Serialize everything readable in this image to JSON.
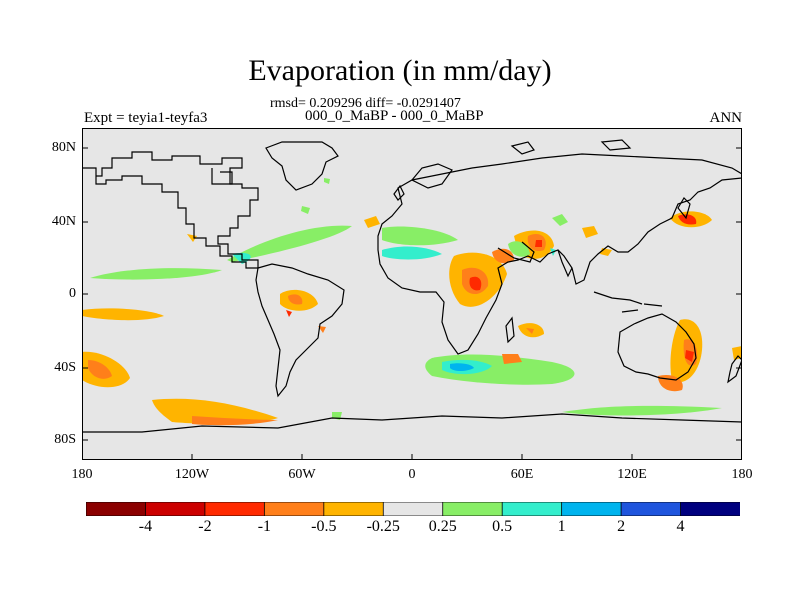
{
  "title": "Evaporation (in mm/day)",
  "stats": "rmsd= 0.209296 diff= -0.0291407",
  "period": "000_0_MaBP - 000_0_MaBP",
  "expt": "Expt = teyia1-teyfa3",
  "season": "ANN",
  "y_ticks": [
    "80N",
    "40N",
    "0",
    "40S",
    "80S"
  ],
  "x_ticks": [
    "180",
    "120W",
    "60W",
    "0",
    "60E",
    "120E",
    "180"
  ],
  "colorbar": {
    "colors": [
      "#8b0000",
      "#cc0000",
      "#ff2a00",
      "#ff7f1a",
      "#ffb400",
      "#e6e6e6",
      "#88ee66",
      "#33eecc",
      "#00b4ee",
      "#1f55dd",
      "#00007f"
    ],
    "labels": [
      "-4",
      "-2",
      "-1",
      "-0.5",
      "-0.25",
      "0.25",
      "0.5",
      "1",
      "2",
      "4"
    ]
  },
  "colors": {
    "land_ocean_fill": "#e6e6e6",
    "coast": "#000000"
  }
}
